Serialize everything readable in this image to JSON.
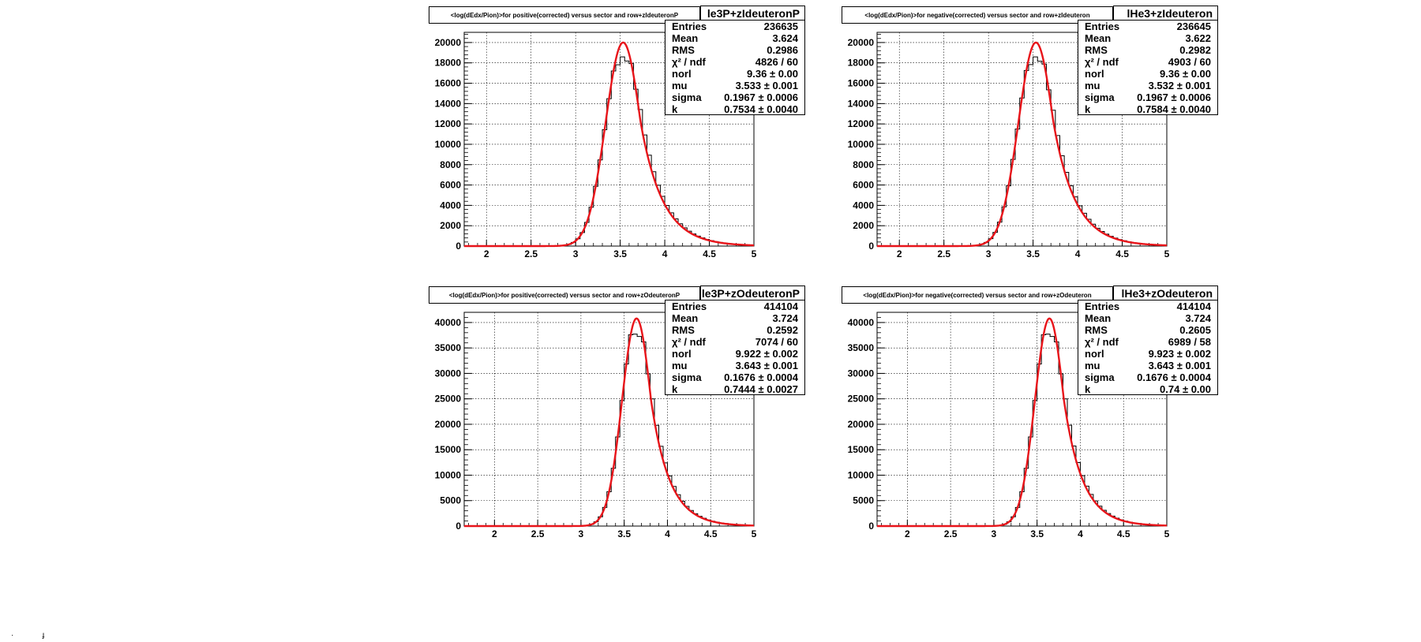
{
  "chart_data": [
    {
      "type": "histogram+fit",
      "title": "<log(dEdx/Pion)>for positive(corrected) versus sector and row+zIdeuteronP",
      "name": "le3P+zIdeuteronP",
      "xlim": [
        1.75,
        5.0
      ],
      "ylim": [
        0,
        21000
      ],
      "x_ticks": [
        "2",
        "2.5",
        "3",
        "3.5",
        "4",
        "4.5",
        "5"
      ],
      "y_ticks": [
        "0",
        "2000",
        "4000",
        "6000",
        "8000",
        "10000",
        "12000",
        "14000",
        "16000",
        "18000",
        "20000"
      ],
      "grid": true,
      "fit": {
        "norl": 9.36,
        "mu": 3.533,
        "sigma": 0.1967,
        "k": 0.7534,
        "peak": 20000
      },
      "stats": [
        {
          "label": "Entries",
          "value": "236635"
        },
        {
          "label": "Mean",
          "value": "3.624"
        },
        {
          "label": "RMS",
          "value": "0.2986"
        },
        {
          "label": "χ² / ndf",
          "value": "4826 / 60"
        },
        {
          "label": "norl",
          "value": "9.36 ± 0.00"
        },
        {
          "label": "mu",
          "value": "3.533 ± 0.001"
        },
        {
          "label": "sigma",
          "value": "0.1967 ± 0.0006"
        },
        {
          "label": "k",
          "value": "0.7534 ± 0.0040"
        }
      ]
    },
    {
      "type": "histogram+fit",
      "title": "<log(dEdx/Pion)>for negative(corrected) versus sector and row+zIdeuteron",
      "name": "lHe3+zIdeuteron",
      "xlim": [
        1.75,
        5.0
      ],
      "ylim": [
        0,
        21000
      ],
      "x_ticks": [
        "2",
        "2.5",
        "3",
        "3.5",
        "4",
        "4.5",
        "5"
      ],
      "y_ticks": [
        "0",
        "2000",
        "4000",
        "6000",
        "8000",
        "10000",
        "12000",
        "14000",
        "16000",
        "18000",
        "20000"
      ],
      "grid": true,
      "fit": {
        "norl": 9.36,
        "mu": 3.532,
        "sigma": 0.1967,
        "k": 0.7584,
        "peak": 20000
      },
      "stats": [
        {
          "label": "Entries",
          "value": "236645"
        },
        {
          "label": "Mean",
          "value": "3.622"
        },
        {
          "label": "RMS",
          "value": "0.2982"
        },
        {
          "label": "χ² / ndf",
          "value": "4903 / 60"
        },
        {
          "label": "norl",
          "value": "9.36 ± 0.00"
        },
        {
          "label": "mu",
          "value": "3.532 ± 0.001"
        },
        {
          "label": "sigma",
          "value": "0.1967 ± 0.0006"
        },
        {
          "label": "k",
          "value": "0.7584 ± 0.0040"
        }
      ]
    },
    {
      "type": "histogram+fit",
      "title": "<log(dEdx/Pion)>for positive(corrected) versus sector and row+zOdeuteronP",
      "name": "le3P+zOdeuteronP",
      "xlim": [
        1.65,
        5.0
      ],
      "ylim": [
        0,
        42000
      ],
      "x_ticks": [
        "2",
        "2.5",
        "3",
        "3.5",
        "4",
        "4.5",
        "5"
      ],
      "y_ticks": [
        "0",
        "5000",
        "10000",
        "15000",
        "20000",
        "25000",
        "30000",
        "35000",
        "40000"
      ],
      "grid": true,
      "fit": {
        "norl": 9.922,
        "mu": 3.643,
        "sigma": 0.1676,
        "k": 0.7444,
        "peak": 40800
      },
      "stats": [
        {
          "label": "Entries",
          "value": "414104"
        },
        {
          "label": "Mean",
          "value": "3.724"
        },
        {
          "label": "RMS",
          "value": "0.2592"
        },
        {
          "label": "χ² / ndf",
          "value": "7074 / 60"
        },
        {
          "label": "norl",
          "value": "9.922 ± 0.002"
        },
        {
          "label": "mu",
          "value": "3.643 ± 0.001"
        },
        {
          "label": "sigma",
          "value": "0.1676 ± 0.0004"
        },
        {
          "label": "k",
          "value": "0.7444 ± 0.0027"
        }
      ]
    },
    {
      "type": "histogram+fit",
      "title": "<log(dEdx/Pion)>for negative(corrected) versus sector and row+zOdeuteron",
      "name": "lHe3+zOdeuteron",
      "xlim": [
        1.65,
        5.0
      ],
      "ylim": [
        0,
        42000
      ],
      "x_ticks": [
        "2",
        "2.5",
        "3",
        "3.5",
        "4",
        "4.5",
        "5"
      ],
      "y_ticks": [
        "0",
        "5000",
        "10000",
        "15000",
        "20000",
        "25000",
        "30000",
        "35000",
        "40000"
      ],
      "grid": true,
      "fit": {
        "norl": 9.923,
        "mu": 3.643,
        "sigma": 0.1676,
        "k": 0.74,
        "peak": 40800
      },
      "stats": [
        {
          "label": "Entries",
          "value": "414104"
        },
        {
          "label": "Mean",
          "value": "3.724"
        },
        {
          "label": "RMS",
          "value": "0.2605"
        },
        {
          "label": "χ² / ndf",
          "value": "6989 / 58"
        },
        {
          "label": "norl",
          "value": "9.923 ± 0.002"
        },
        {
          "label": "mu",
          "value": "3.643 ± 0.001"
        },
        {
          "label": "sigma",
          "value": "0.1676 ± 0.0004"
        },
        {
          "label": "k",
          "value": "0.74 ± 0.00"
        }
      ]
    }
  ],
  "colors": {
    "fit": "#e8141a",
    "hist": "#000000",
    "grid": "#000000"
  }
}
